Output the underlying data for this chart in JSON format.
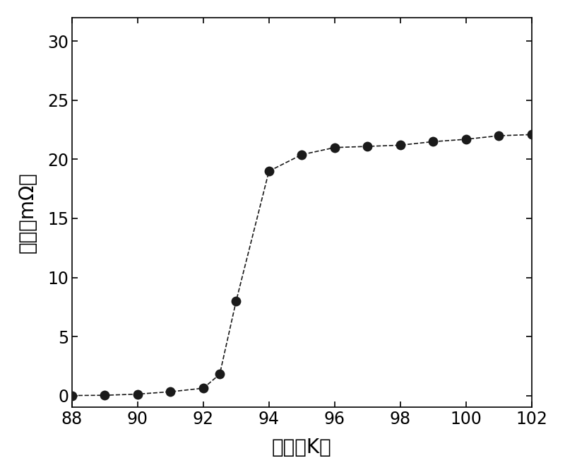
{
  "x": [
    88,
    89,
    90,
    91,
    92,
    92.5,
    93,
    94,
    95,
    96,
    97,
    98,
    99,
    100,
    101,
    102
  ],
  "y": [
    0.0,
    0.02,
    0.12,
    0.32,
    0.62,
    1.8,
    8.0,
    19.0,
    20.4,
    21.0,
    21.1,
    21.2,
    21.5,
    21.7,
    22.0,
    22.1
  ],
  "xlim": [
    88,
    102
  ],
  "ylim": [
    -1,
    32
  ],
  "xticks": [
    88,
    90,
    92,
    94,
    96,
    98,
    100,
    102
  ],
  "yticks": [
    0,
    5,
    10,
    15,
    20,
    25,
    30
  ],
  "xlabel": "温度（K）",
  "ylabel": "电阔（mΩ）",
  "line_color": "#1a1a1a",
  "marker_color": "#1a1a1a",
  "marker_size": 10,
  "line_width": 1.2,
  "bg_color": "#ffffff",
  "xlabel_fontsize": 20,
  "ylabel_fontsize": 20,
  "tick_fontsize": 17
}
